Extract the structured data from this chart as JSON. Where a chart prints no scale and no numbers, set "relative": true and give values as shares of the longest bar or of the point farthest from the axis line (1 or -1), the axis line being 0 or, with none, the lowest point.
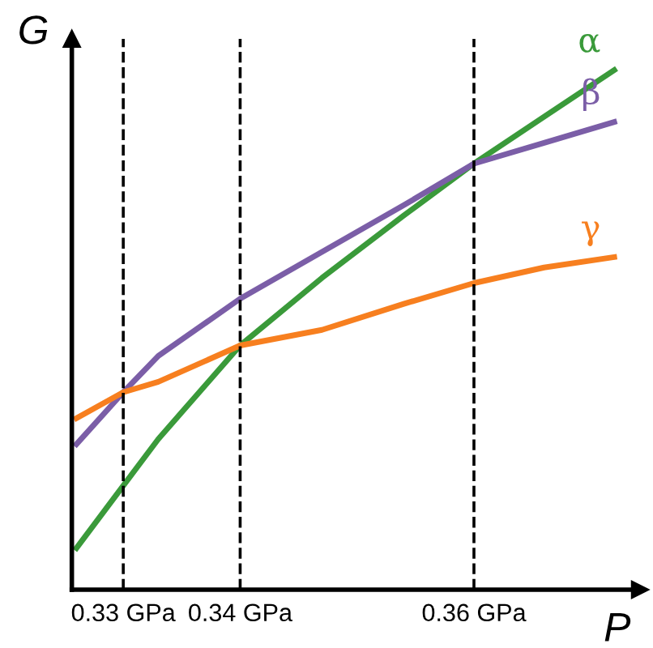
{
  "chart_data": {
    "type": "line",
    "relative": true,
    "xlabel": "P",
    "ylabel": "G",
    "tick_labels": "x",
    "xlim": [
      0.3256,
      0.3742
    ],
    "xticks": [
      {
        "value": 0.33,
        "label": "0.33 GPa"
      },
      {
        "value": 0.34,
        "label": "0.34 GPa"
      },
      {
        "value": 0.36,
        "label": "0.36 GPa"
      }
    ],
    "x": [
      0.326,
      0.33,
      0.333,
      0.34,
      0.347,
      0.354,
      0.36,
      0.366,
      0.372
    ],
    "series": [
      {
        "name": "α",
        "color": "#3a9a3a",
        "values": [
          0.08,
          0.2,
          0.29,
          0.47,
          0.6,
          0.72,
          0.82,
          0.91,
          1.0
        ]
      },
      {
        "name": "β",
        "color": "#7b5ea7",
        "values": [
          0.28,
          0.38,
          0.45,
          0.56,
          0.65,
          0.74,
          0.82,
          0.86,
          0.9
        ]
      },
      {
        "name": "γ",
        "color": "#f77f1f",
        "values": [
          0.33,
          0.38,
          0.4,
          0.47,
          0.5,
          0.55,
          0.59,
          0.62,
          0.64
        ]
      }
    ],
    "ref_lines": [
      {
        "axis": "x",
        "value": 0.33,
        "color": "#000000",
        "line_style": "dashed"
      },
      {
        "axis": "x",
        "value": 0.34,
        "color": "#000000",
        "line_style": "dashed"
      },
      {
        "axis": "x",
        "value": 0.36,
        "color": "#000000",
        "line_style": "dashed"
      }
    ],
    "marker": "none",
    "line_style": "solid"
  }
}
